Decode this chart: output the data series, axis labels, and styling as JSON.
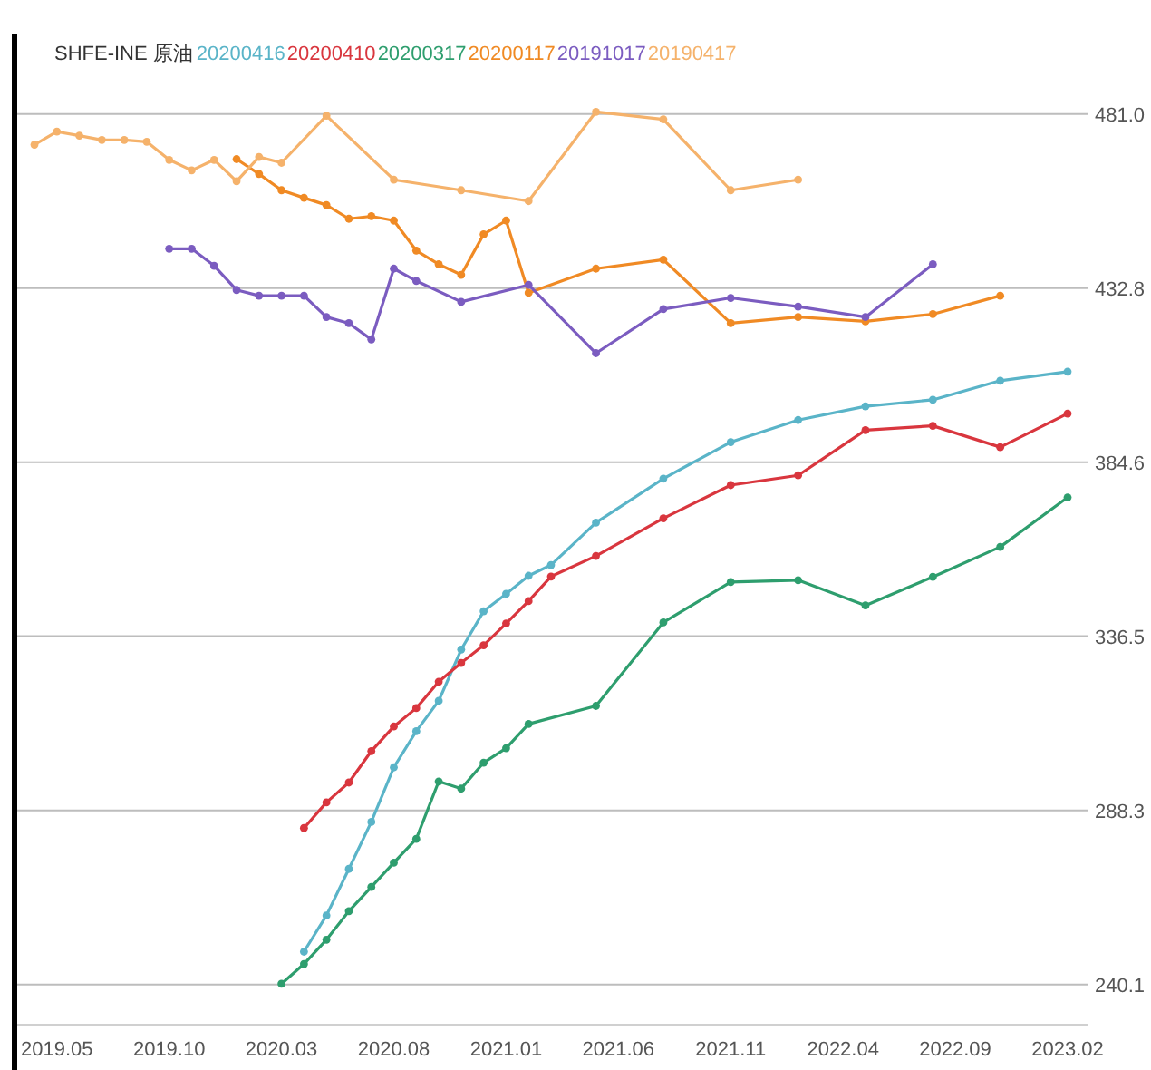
{
  "chart_data": {
    "type": "line",
    "title": "SHFE-INE 原油",
    "categories": [
      null,
      "2019.05",
      null,
      null,
      null,
      null,
      "2019.10",
      null,
      null,
      null,
      null,
      "2020.03",
      null,
      null,
      null,
      null,
      "2020.08",
      null,
      null,
      null,
      null,
      "2021.01",
      null,
      null,
      null,
      null,
      "2021.06",
      null,
      null,
      null,
      null,
      "2021.11",
      null,
      null,
      null,
      null,
      "2022.04",
      null,
      null,
      null,
      null,
      "2022.09",
      null,
      null,
      null,
      null,
      "2023.02"
    ],
    "ylim": [
      229,
      503
    ],
    "yticks": [
      240.1,
      288.3,
      336.5,
      384.6,
      432.8,
      {
        "value": 481.0,
        "label": "481.0"
      }
    ],
    "grid": "y",
    "legend": "top left",
    "marker": "circle",
    "line_style": "solid",
    "series": [
      {
        "name": "20200416",
        "color": "#5ab4c8",
        "values": [
          null,
          null,
          null,
          null,
          null,
          null,
          null,
          null,
          null,
          null,
          null,
          null,
          249.2,
          259.2,
          272.1,
          285.1,
          300.2,
          310.2,
          318.6,
          332.8,
          343.4,
          348.2,
          353.2,
          356.2,
          null,
          367.9,
          null,
          null,
          380.1,
          null,
          null,
          390.2,
          null,
          null,
          396.3,
          null,
          null,
          400.1,
          null,
          null,
          401.9,
          null,
          null,
          407.2,
          null,
          null,
          409.7
        ]
      },
      {
        "name": "20200410",
        "color": "#d9363e",
        "values": [
          null,
          null,
          null,
          null,
          null,
          null,
          null,
          null,
          null,
          null,
          null,
          null,
          283.4,
          290.5,
          296.0,
          304.7,
          311.5,
          316.6,
          323.9,
          329.1,
          334.0,
          340.0,
          346.2,
          353.0,
          null,
          358.7,
          null,
          null,
          369.1,
          null,
          null,
          378.3,
          null,
          null,
          381.0,
          null,
          null,
          393.5,
          null,
          null,
          394.7,
          null,
          null,
          388.8,
          null,
          null,
          398.1
        ]
      },
      {
        "name": "20200317",
        "color": "#2e9e6e",
        "values": [
          null,
          null,
          null,
          null,
          null,
          null,
          null,
          null,
          null,
          null,
          null,
          240.3,
          245.8,
          252.5,
          260.4,
          267.1,
          273.8,
          280.4,
          296.3,
          294.3,
          301.5,
          305.5,
          312.2,
          null,
          null,
          317.2,
          null,
          null,
          340.3,
          null,
          null,
          351.5,
          null,
          null,
          352.0,
          null,
          null,
          345.0,
          null,
          null,
          352.9,
          null,
          null,
          361.2,
          null,
          null,
          374.9
        ]
      },
      {
        "name": "20200117",
        "color": "#f08a24",
        "values": [
          null,
          null,
          null,
          null,
          null,
          null,
          null,
          null,
          null,
          468.5,
          464.4,
          459.9,
          457.8,
          455.8,
          452.0,
          452.7,
          451.5,
          443.2,
          439.4,
          436.5,
          447.7,
          451.5,
          431.5,
          null,
          null,
          438.2,
          null,
          null,
          440.7,
          null,
          null,
          423.1,
          null,
          null,
          424.8,
          null,
          null,
          423.6,
          null,
          null,
          425.6,
          null,
          null,
          430.7,
          null,
          null,
          null
        ]
      },
      {
        "name": "20191017",
        "color": "#7b5cc0",
        "values": [
          null,
          null,
          null,
          null,
          null,
          null,
          443.7,
          443.7,
          439.0,
          432.3,
          430.7,
          430.7,
          430.7,
          424.8,
          423.1,
          418.6,
          438.2,
          434.8,
          null,
          429.0,
          null,
          null,
          433.7,
          null,
          null,
          414.8,
          null,
          null,
          427.0,
          null,
          null,
          430.1,
          null,
          null,
          427.7,
          null,
          null,
          424.8,
          null,
          null,
          439.4,
          null,
          null,
          null,
          null,
          null,
          null
        ]
      },
      {
        "name": "20190417",
        "color": "#f5b26b",
        "values": [
          472.5,
          476.1,
          475.0,
          473.8,
          473.8,
          473.3,
          468.3,
          465.4,
          468.3,
          462.4,
          469.1,
          467.5,
          null,
          480.5,
          null,
          null,
          462.8,
          null,
          null,
          459.9,
          null,
          null,
          456.9,
          null,
          null,
          481.6,
          null,
          null,
          479.5,
          null,
          null,
          459.9,
          null,
          null,
          462.8,
          null,
          null,
          null,
          null,
          null,
          null,
          null,
          null,
          null,
          null,
          null,
          null
        ]
      }
    ]
  }
}
